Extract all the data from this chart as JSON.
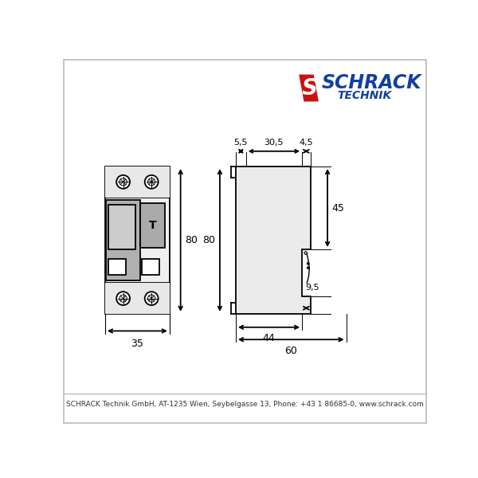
{
  "bg_color": "#ffffff",
  "line_color": "#000000",
  "fill_light": "#eeeeee",
  "fill_gray": "#aaaaaa",
  "fill_med_gray": "#888888",
  "footer_text": "SCHRACK Technik GmbH, AT-1235 Wien, Seybelgasse 13, Phone: +43 1 86685-0, www.schrack.com",
  "dim_35": "35",
  "dim_80": "80",
  "dim_5_5": "5,5",
  "dim_30_5": "30,5",
  "dim_4_5": "4,5",
  "dim_44": "44",
  "dim_60": "60",
  "dim_45": "45",
  "dim_9_5": "9,5",
  "schrack_blue": "#1040a0",
  "schrack_red": "#cc1111"
}
